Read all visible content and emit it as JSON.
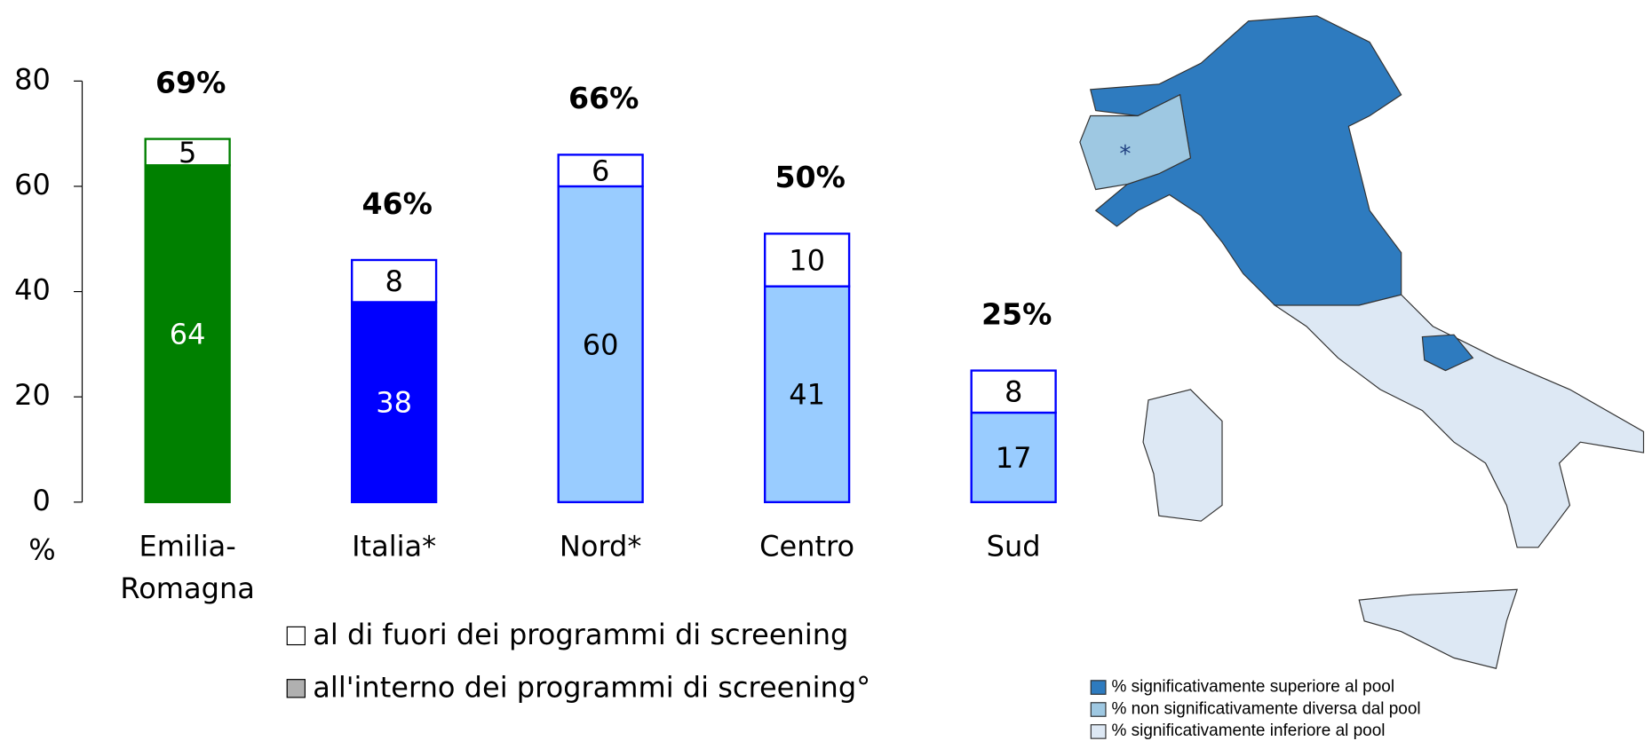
{
  "chart_data": {
    "type": "stacked_bar",
    "categories": [
      "Emilia-Romagna",
      "Italia*",
      "Nord*",
      "Centro",
      "Sud"
    ],
    "series": [
      {
        "name": "all'interno dei programmi di screening°",
        "color": "#b0b0b0",
        "colors": [
          "#008000",
          "#0000ff",
          "#99ccff",
          "#99ccff",
          "#99ccff"
        ],
        "edge_colors": [
          "#008000",
          "#0000ff",
          "#0000ff",
          "#0000ff",
          "#0000ff"
        ],
        "value_label_colors": [
          "#ffffff",
          "#ffffff",
          "#000000",
          "#000000",
          "#000000"
        ],
        "values": [
          64,
          38,
          60,
          41,
          17
        ]
      },
      {
        "name": "al di fuori dei programmi di screening",
        "color": "#ffffff",
        "values": [
          5,
          8,
          6,
          10,
          8
        ]
      }
    ],
    "totals": {
      "values": [
        69,
        46,
        66,
        50,
        25
      ],
      "value_labels": [
        "69%",
        "46%",
        "66%",
        "50%",
        "25%"
      ]
    },
    "y_label": "%",
    "ylim": [
      0,
      80
    ],
    "yticks": [
      0,
      20,
      40,
      60,
      80
    ]
  },
  "map": {
    "marker": "*",
    "legend": [
      {
        "label": "% significativamente superiore al pool",
        "color": "#2e7bbf"
      },
      {
        "label": "% non significativamente diversa dal pool",
        "color": "#9ec8e2"
      },
      {
        "label": "% significativamente inferiore al pool",
        "color": "#dde8f4"
      }
    ]
  }
}
